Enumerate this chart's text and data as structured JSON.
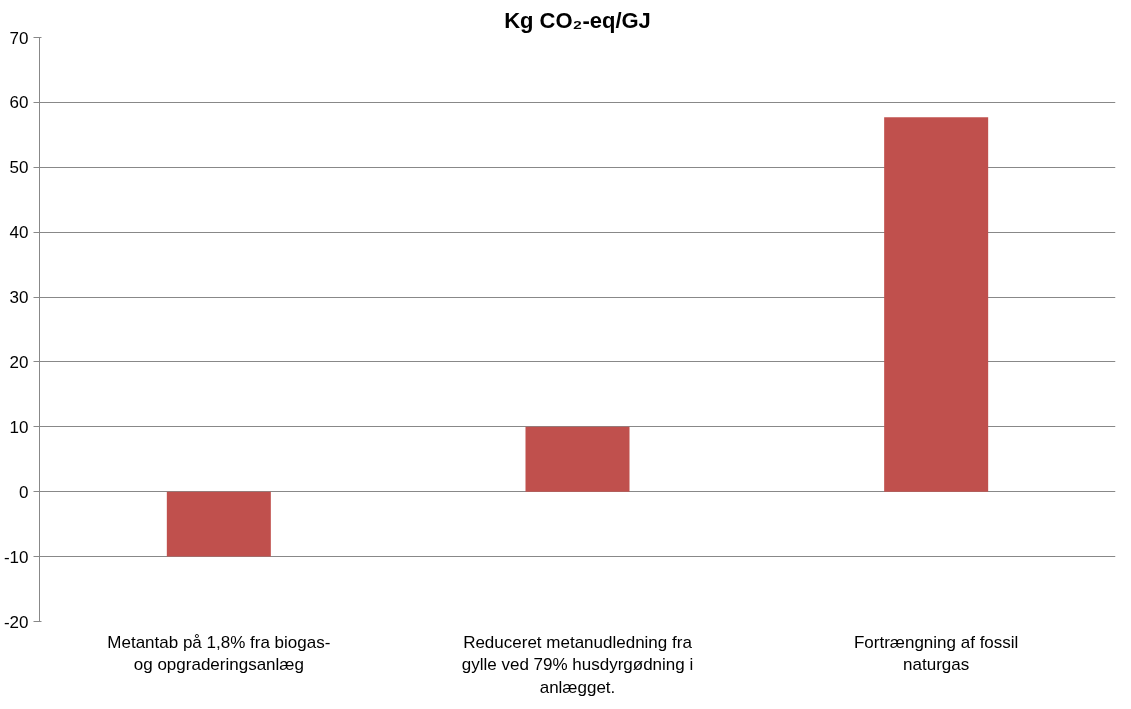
{
  "chart_data": {
    "type": "bar",
    "title": "Kg CO₂-eq/GJ",
    "categories": [
      "Metantab på 1,8% fra biogas- og opgraderingsanlæg",
      "Reduceret metanudledning fra gylle ved 79% husdyrgødning i anlægget.",
      "Fortrængning af fossil naturgas"
    ],
    "values": [
      -10,
      10,
      57.7
    ],
    "color": "#c0504d",
    "ylim": [
      -20,
      70
    ],
    "yticks": [
      -20,
      -10,
      0,
      10,
      20,
      30,
      40,
      50,
      60,
      70
    ],
    "grid": "y"
  }
}
